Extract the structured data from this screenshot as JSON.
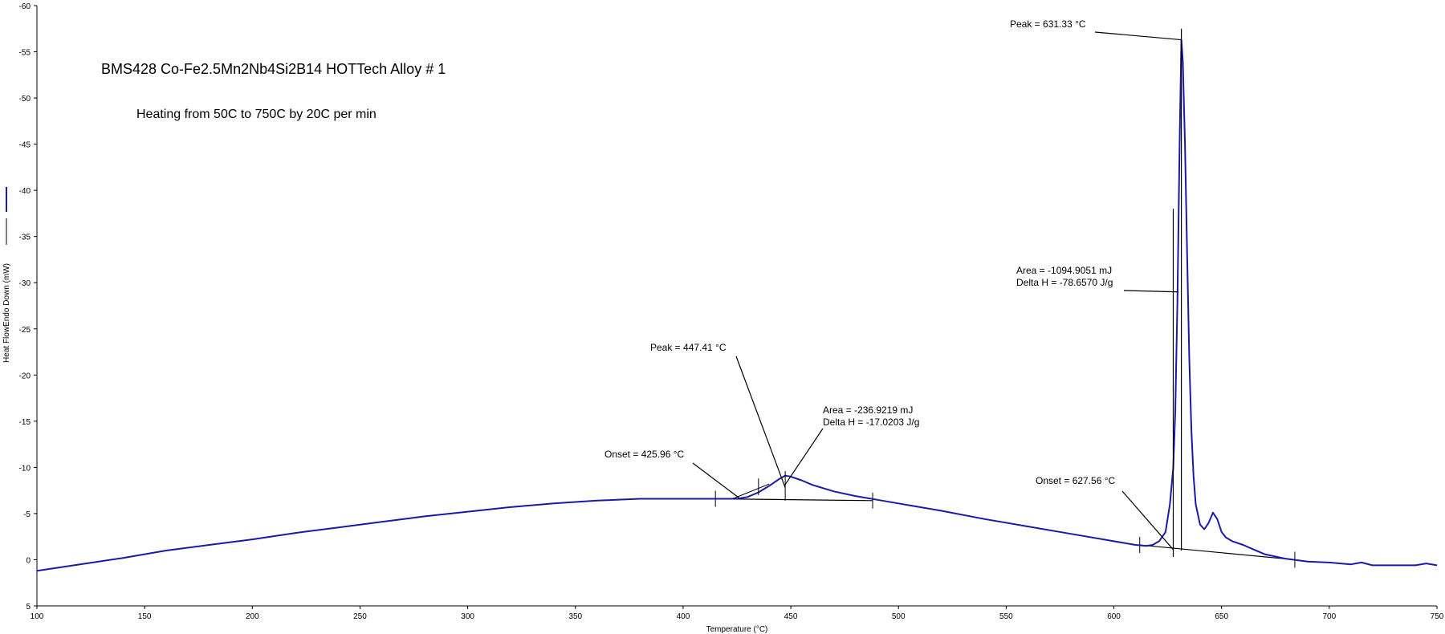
{
  "chart_data": {
    "type": "line",
    "title": "BMS428 Co-Fe2.5Mn2Nb4Si2B14 HOTTech  Alloy # 1",
    "subtitle": "Heating from 50C to 750C by 20C per min",
    "xlabel": "Temperature (°C)",
    "ylabel": "Heat FlowEndo Down (mW)",
    "xlim": [
      100,
      750
    ],
    "ylim": [
      5,
      -60
    ],
    "y_inverted": true,
    "grid": false,
    "x_ticks": [
      100,
      150,
      200,
      250,
      300,
      350,
      400,
      450,
      500,
      550,
      600,
      650,
      700,
      750
    ],
    "y_ticks": [
      -60,
      -55,
      -50,
      -45,
      -40,
      -35,
      -30,
      -25,
      -20,
      -15,
      -10,
      -5,
      0,
      5
    ],
    "series": [
      {
        "color": "#1a1aa6",
        "x": [
          100,
          120,
          140,
          160,
          180,
          200,
          220,
          240,
          260,
          280,
          300,
          320,
          340,
          360,
          380,
          400,
          415,
          425,
          430,
          435,
          440,
          445,
          447.41,
          450,
          455,
          460,
          470,
          480,
          490,
          500,
          520,
          540,
          560,
          580,
          600,
          610,
          615,
          618,
          621,
          624,
          626,
          627.56,
          628.5,
          629.5,
          630.5,
          631.33,
          632,
          633,
          634,
          635,
          636,
          637,
          638,
          640,
          642,
          644,
          646,
          648,
          650,
          652,
          655,
          660,
          665,
          670,
          680,
          690,
          700,
          710,
          715,
          720,
          730,
          740,
          745,
          750
        ],
        "values": [
          1.2,
          0.5,
          -0.2,
          -1.0,
          -1.6,
          -2.2,
          -2.9,
          -3.5,
          -4.1,
          -4.7,
          -5.2,
          -5.7,
          -6.1,
          -6.4,
          -6.6,
          -6.6,
          -6.6,
          -6.6,
          -6.8,
          -7.3,
          -8.0,
          -8.8,
          -9.1,
          -9.0,
          -8.6,
          -8.1,
          -7.4,
          -6.9,
          -6.5,
          -6.1,
          -5.3,
          -4.4,
          -3.6,
          -2.8,
          -2.0,
          -1.6,
          -1.5,
          -1.6,
          -2.0,
          -3.0,
          -6.0,
          -10.0,
          -16.0,
          -28.0,
          -45.0,
          -56.3,
          -54.0,
          -45.0,
          -33.0,
          -22.0,
          -14.0,
          -9.0,
          -6.0,
          -3.8,
          -3.3,
          -4.0,
          -5.1,
          -4.4,
          -3.0,
          -2.4,
          -2.0,
          -1.6,
          -1.1,
          -0.6,
          -0.1,
          0.2,
          0.3,
          0.5,
          0.3,
          0.6,
          0.6,
          0.6,
          0.4,
          0.6
        ]
      }
    ],
    "baselines": [
      {
        "x": [
          415,
          488
        ],
        "values": [
          -6.6,
          -6.4
        ]
      },
      {
        "x": [
          612,
          684
        ],
        "values": [
          -1.6,
          0.0
        ]
      }
    ],
    "annotations": [
      {
        "lines": [
          "Peak = 631.33 °C"
        ],
        "anchor": [
          631.33,
          -56.3
        ]
      },
      {
        "lines": [
          "Area = -1094.9051 mJ",
          "Delta H = -78.6570 J/g"
        ],
        "anchor": [
          630,
          -29
        ]
      },
      {
        "lines": [
          "Onset = 627.56 °C"
        ],
        "anchor": [
          627.56,
          -1.1
        ]
      },
      {
        "lines": [
          "Peak = 447.41 °C"
        ],
        "anchor": [
          447.41,
          -7.8
        ]
      },
      {
        "lines": [
          "Area = -236.9219 mJ",
          "Delta H = -17.0203 J/g"
        ],
        "anchor": [
          447,
          -8
        ]
      },
      {
        "lines": [
          "Onset = 425.96 °C"
        ],
        "anchor": [
          425.96,
          -6.7
        ]
      }
    ]
  }
}
